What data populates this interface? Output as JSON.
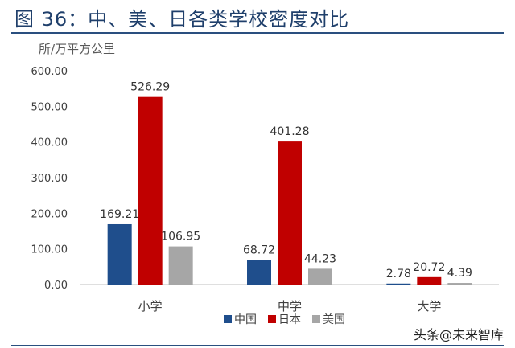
{
  "title": "图 36：中、美、日各类学校密度对比",
  "watermark": "头条@未来智库",
  "colors": {
    "title": "#1f3f6b",
    "rule": "#2a4f7f"
  },
  "chart_data": {
    "type": "bar",
    "ylabel": "所/万平方公里",
    "ylim": [
      0,
      600
    ],
    "yticks": [
      "0.00",
      "100.00",
      "200.00",
      "300.00",
      "400.00",
      "500.00",
      "600.00"
    ],
    "grid": false,
    "legend_position": "bottom-center",
    "categories": [
      "小学",
      "中学",
      "大学"
    ],
    "series": [
      {
        "name": "中国",
        "color": "#1f4e8c",
        "values": [
          169.21,
          68.72,
          2.78
        ],
        "labels": [
          "169.21",
          "68.72",
          "2.78"
        ]
      },
      {
        "name": "日本",
        "color": "#c00000",
        "values": [
          526.29,
          401.28,
          20.72
        ],
        "labels": [
          "526.29",
          "401.28",
          "20.72"
        ]
      },
      {
        "name": "美国",
        "color": "#a6a6a6",
        "values": [
          106.95,
          44.23,
          4.39
        ],
        "labels": [
          "106.95",
          "44.23",
          "4.39"
        ]
      }
    ]
  }
}
